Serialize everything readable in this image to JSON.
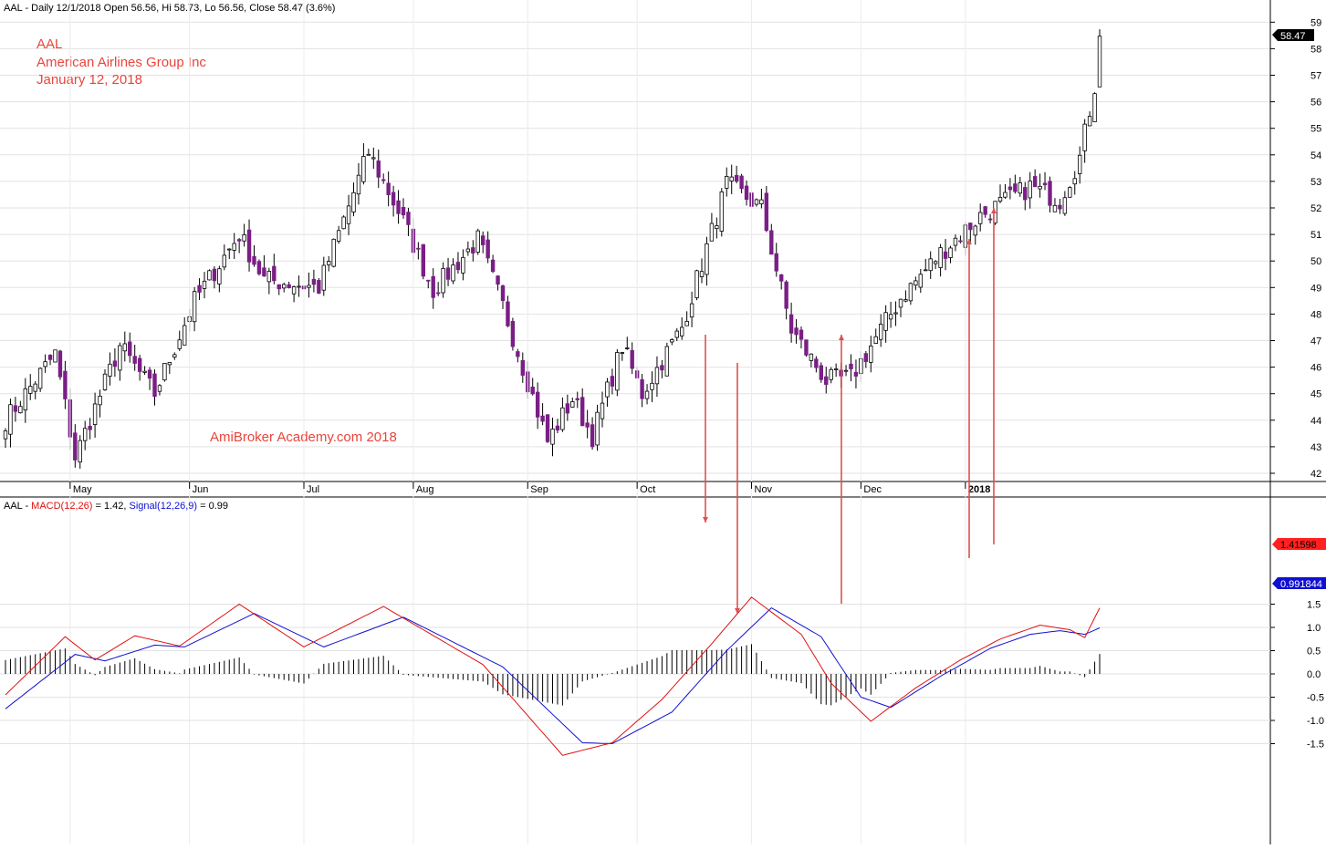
{
  "price_header": {
    "symbol": "AAL",
    "text": "AAL - Daily 12/1/2018 Open 56.56, Hi 58.73, Lo 56.56, Close 58.47 (3.6%)"
  },
  "overlay": {
    "line1": "AAL",
    "line2": "American Airlines Group Inc",
    "line3": "January 12, 2018",
    "watermark": "AmiBroker Academy.com  2018",
    "text_color": "#e8453c"
  },
  "macd_header": {
    "prefix": "AAL - ",
    "macd_label": "MACD(12,26)",
    "macd_value": " = 1.42, ",
    "signal_label": "Signal(12,26,9)",
    "signal_value": " = 0.99"
  },
  "last_price_tag": "58.47",
  "macd_tag": "1.41598",
  "signal_tag": "0.991844",
  "colors": {
    "up_candle": "#ffffff",
    "down_candle": "#7a1f86",
    "macd_line": "#e01010",
    "signal_line": "#1010d0",
    "histogram": "#000000",
    "arrow": "#e05050",
    "macd_tag_bg": "#ff2020",
    "signal_tag_bg": "#1010d0"
  },
  "chart_data": [
    {
      "type": "candlestick",
      "title": "AAL - Daily 12/1/2018 Open 56.56, Hi 58.73, Lo 56.56, Close 58.47 (3.6%)",
      "x_ticks": [
        "May",
        "Jun",
        "Jul",
        "Aug",
        "Sep",
        "Oct",
        "Nov",
        "Dec",
        "2018"
      ],
      "y_ticks": [
        42,
        43,
        44,
        45,
        46,
        47,
        48,
        49,
        50,
        51,
        52,
        53,
        54,
        55,
        56,
        57,
        58,
        59
      ],
      "ylim": [
        41.6,
        59.4
      ],
      "close_keypoints": [
        {
          "bar": 0,
          "close": 44.0
        },
        {
          "bar": 10,
          "close": 46.5
        },
        {
          "bar": 14,
          "close": 42.6
        },
        {
          "bar": 23,
          "close": 46.8
        },
        {
          "bar": 30,
          "close": 45.0
        },
        {
          "bar": 38,
          "close": 48.5
        },
        {
          "bar": 47,
          "close": 51.0
        },
        {
          "bar": 52,
          "close": 49.3
        },
        {
          "bar": 63,
          "close": 49.0
        },
        {
          "bar": 73,
          "close": 54.1
        },
        {
          "bar": 80,
          "close": 51.5
        },
        {
          "bar": 86,
          "close": 48.9
        },
        {
          "bar": 95,
          "close": 50.8
        },
        {
          "bar": 100,
          "close": 48.3
        },
        {
          "bar": 109,
          "close": 43.2
        },
        {
          "bar": 114,
          "close": 44.8
        },
        {
          "bar": 118,
          "close": 43.4
        },
        {
          "bar": 124,
          "close": 46.8
        },
        {
          "bar": 128,
          "close": 45.0
        },
        {
          "bar": 136,
          "close": 47.5
        },
        {
          "bar": 145,
          "close": 52.9
        },
        {
          "bar": 152,
          "close": 52.0
        },
        {
          "bar": 158,
          "close": 47.4
        },
        {
          "bar": 165,
          "close": 45.5
        },
        {
          "bar": 170,
          "close": 45.6
        },
        {
          "bar": 180,
          "close": 48.6
        },
        {
          "bar": 188,
          "close": 50.3
        },
        {
          "bar": 196,
          "close": 51.7
        },
        {
          "bar": 206,
          "close": 52.8
        },
        {
          "bar": 212,
          "close": 52.3
        },
        {
          "bar": 216,
          "close": 53.9
        },
        {
          "bar": 219,
          "close": 56.6
        },
        {
          "bar": 220,
          "close": 58.47
        }
      ]
    },
    {
      "type": "line",
      "title": "AAL - MACD(12,26) = 1.42, Signal(12,26,9) = 0.99",
      "y_ticks": [
        -1.5,
        -1.0,
        -0.5,
        0.0,
        0.5,
        1.0,
        1.5
      ],
      "ylim": [
        -1.85,
        1.85
      ],
      "series": [
        {
          "name": "MACD(12,26)",
          "color": "#e01010",
          "keypoints": [
            [
              0,
              -0.45
            ],
            [
              12,
              0.8
            ],
            [
              18,
              0.3
            ],
            [
              26,
              0.82
            ],
            [
              35,
              0.6
            ],
            [
              47,
              1.5
            ],
            [
              60,
              0.58
            ],
            [
              76,
              1.45
            ],
            [
              96,
              0.2
            ],
            [
              112,
              -1.75
            ],
            [
              122,
              -1.48
            ],
            [
              132,
              -0.55
            ],
            [
              142,
              0.65
            ],
            [
              150,
              1.65
            ],
            [
              160,
              0.85
            ],
            [
              166,
              -0.2
            ],
            [
              174,
              -1.02
            ],
            [
              183,
              -0.3
            ],
            [
              192,
              0.3
            ],
            [
              200,
              0.75
            ],
            [
              208,
              1.05
            ],
            [
              214,
              0.95
            ],
            [
              217,
              0.78
            ],
            [
              220,
              1.42
            ]
          ]
        },
        {
          "name": "Signal(12,26,9)",
          "color": "#1010d0",
          "keypoints": [
            [
              0,
              -0.75
            ],
            [
              14,
              0.42
            ],
            [
              20,
              0.28
            ],
            [
              30,
              0.62
            ],
            [
              36,
              0.58
            ],
            [
              50,
              1.3
            ],
            [
              64,
              0.58
            ],
            [
              80,
              1.22
            ],
            [
              100,
              0.15
            ],
            [
              116,
              -1.48
            ],
            [
              122,
              -1.5
            ],
            [
              134,
              -0.82
            ],
            [
              145,
              0.5
            ],
            [
              154,
              1.42
            ],
            [
              164,
              0.8
            ],
            [
              172,
              -0.5
            ],
            [
              178,
              -0.72
            ],
            [
              188,
              -0.05
            ],
            [
              198,
              0.55
            ],
            [
              206,
              0.85
            ],
            [
              212,
              0.93
            ],
            [
              217,
              0.85
            ],
            [
              220,
              0.99
            ]
          ]
        },
        {
          "name": "Histogram",
          "color": "#000000",
          "values": "MACD minus Signal"
        }
      ]
    }
  ]
}
